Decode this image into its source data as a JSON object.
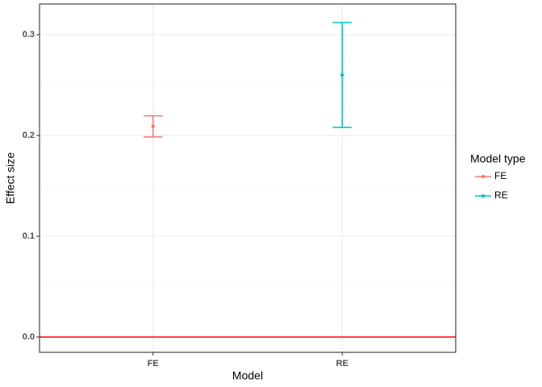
{
  "chart_data": {
    "type": "errorbar",
    "x_label": "Model",
    "y_label": "Effect size",
    "legend_title": "Model type",
    "categories": [
      "FE",
      "RE"
    ],
    "series": [
      {
        "name": "FE",
        "color": "#F8766D",
        "values": [
          0.209,
          null
        ],
        "errors": [
          0.0105,
          null
        ]
      },
      {
        "name": "RE",
        "color": "#00BFC4",
        "values": [
          null,
          0.26
        ],
        "errors": [
          null,
          0.052
        ]
      }
    ],
    "ylim": [
      -0.0152,
      0.3304
    ],
    "yticks": [
      0.0,
      0.1,
      0.2,
      0.3
    ],
    "minor_yticks": [
      0.05,
      0.15,
      0.25
    ],
    "hline": 0,
    "hline_color": "#FF0000",
    "grid": true,
    "legend": "right"
  }
}
